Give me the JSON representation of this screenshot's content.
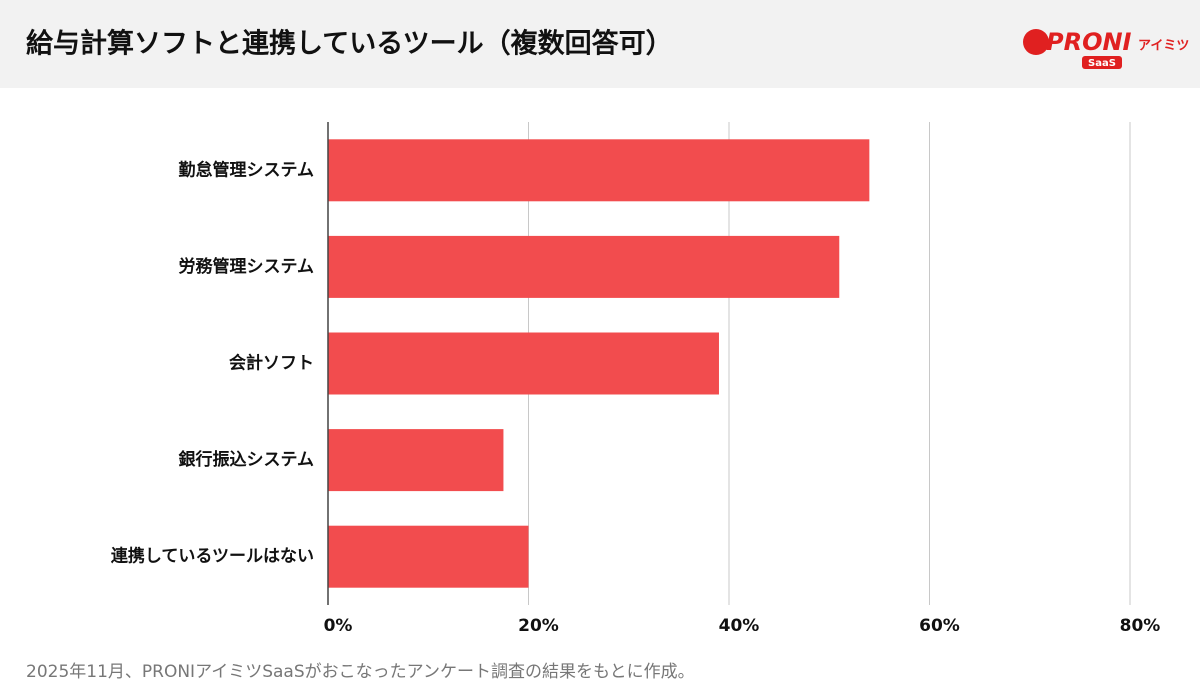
{
  "chart_data": {
    "type": "hbar",
    "title": "給与計算ソフトと連携しているツール（複数回答可）",
    "categories": [
      "勤怠管理システム",
      "労務管理システム",
      "会計ソフト",
      "銀行振込システム",
      "連携しているツールはない"
    ],
    "values": [
      54,
      51,
      39,
      17.5,
      20
    ],
    "color": "#f24c4e",
    "xlim": [
      0,
      80
    ],
    "xticks": [
      {
        "value": 0,
        "label": "0%"
      },
      {
        "value": 20,
        "label": "20%"
      },
      {
        "value": 40,
        "label": "40%"
      },
      {
        "value": 60,
        "label": "60%"
      },
      {
        "value": 80,
        "label": "80%"
      }
    ],
    "grid": true,
    "note": "2025年11月、PRONIアイミツSaaSがおこなったアンケート調査の結果をもとに作成。"
  },
  "logo": {
    "brand": "PRONI",
    "sub": "アイミツ",
    "badge": "SaaS"
  }
}
